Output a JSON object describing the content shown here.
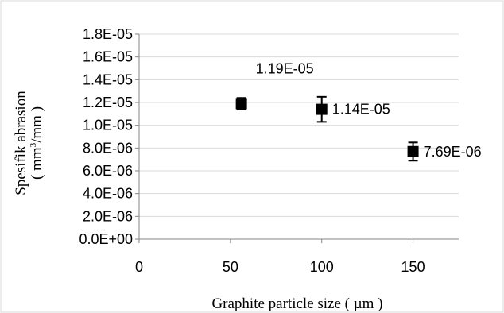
{
  "chart_data": {
    "type": "scatter",
    "xlabel": "Graphite particle size ( µm )",
    "ylabel": {
      "line1": "Spesifik abrasion",
      "line2_pre": "( mm",
      "line2_sup": "3",
      "line2_post": "/mm )"
    },
    "xlim": [
      0,
      175
    ],
    "ylim": [
      0,
      1.8e-05
    ],
    "x_ticks": [
      "0",
      "50",
      "100",
      "150"
    ],
    "y_ticks": [
      "0.0E+00",
      "2.0E-06",
      "4.0E-06",
      "6.0E-06",
      "8.0E-06",
      "1.0E-05",
      "1.2E-05",
      "1.4E-05",
      "1.6E-05",
      "1.8E-05"
    ],
    "grid": "horizontal",
    "marker": "square",
    "marker_color": "#000000",
    "points": [
      {
        "x": 56,
        "y": 1.19e-05,
        "err": 5e-07,
        "label": "1.19E-05",
        "label_pos": "above-right"
      },
      {
        "x": 100,
        "y": 1.14e-05,
        "err": 1.1e-06,
        "label": "1.14E-05",
        "label_pos": "right"
      },
      {
        "x": 150,
        "y": 7.69e-06,
        "err": 8e-07,
        "label": "7.69E-06",
        "label_pos": "right"
      }
    ]
  }
}
